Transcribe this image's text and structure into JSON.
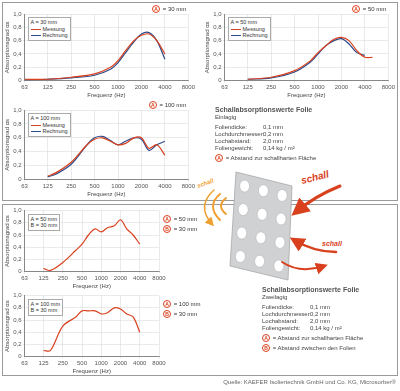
{
  "chart_data": [
    {
      "type": "line",
      "x_label": "Frequenz (Hz)",
      "y_label": "Absorptionsgrad αs",
      "log": "x",
      "grid": true,
      "legend": "upper left",
      "legend_title": [
        "A = 30 mm"
      ],
      "annotations": [
        {
          "letter": "A",
          "text": "= 30 mm"
        }
      ],
      "xlim": [
        63,
        8000
      ],
      "xticks": [
        63,
        125,
        250,
        500,
        1000,
        2000,
        4000,
        8000
      ],
      "ylim": [
        0,
        1
      ],
      "yticks": [
        0,
        {
          "value": 0.2,
          "label": "0,2"
        },
        {
          "value": 0.4,
          "label": "0,4"
        },
        {
          "value": 0.6,
          "label": "0,6"
        },
        {
          "value": 0.8,
          "label": "0,8"
        },
        {
          "value": 1,
          "label": "1,0"
        }
      ],
      "x": [
        63,
        125,
        250,
        500,
        800,
        1000,
        1250,
        1600,
        2000,
        2500,
        3150,
        4000
      ],
      "series": [
        {
          "name": "Messung",
          "color": "#d9411e",
          "values": [
            0.02,
            0.02,
            0.05,
            0.1,
            0.2,
            0.3,
            0.45,
            0.6,
            0.68,
            0.7,
            0.6,
            0.4
          ]
        },
        {
          "name": "Rechnung",
          "color": "#2d4a8a",
          "values": [
            0.01,
            0.02,
            0.04,
            0.08,
            0.17,
            0.27,
            0.42,
            0.58,
            0.7,
            0.72,
            0.6,
            0.32
          ]
        }
      ]
    },
    {
      "type": "line",
      "x_label": "Frequenz (Hz)",
      "y_label": "Absorptionsgrad αs",
      "log": "x",
      "grid": true,
      "legend": "upper left",
      "legend_title": [
        "A = 50 mm"
      ],
      "annotations": [
        {
          "letter": "A",
          "text": "= 50 mm"
        }
      ],
      "xlim": [
        63,
        8000
      ],
      "xticks": [
        63,
        125,
        250,
        500,
        1000,
        2000,
        4000,
        8000
      ],
      "ylim": [
        0,
        1
      ],
      "yticks": [
        0,
        {
          "value": 0.2,
          "label": "0,2"
        },
        {
          "value": 0.4,
          "label": "0,4"
        },
        {
          "value": 0.6,
          "label": "0,6"
        },
        {
          "value": 0.8,
          "label": "0,8"
        },
        {
          "value": 1,
          "label": "1,0"
        }
      ],
      "x": [
        125,
        250,
        500,
        800,
        1000,
        1250,
        1600,
        2000,
        2500,
        3150,
        4000,
        5000
      ],
      "series": [
        {
          "name": "Messung",
          "color": "#d9411e",
          "values": [
            0.02,
            0.05,
            0.15,
            0.3,
            0.42,
            0.52,
            0.62,
            0.65,
            0.6,
            0.45,
            0.35,
            0.35
          ]
        },
        {
          "name": "Rechnung",
          "color": "#2d4a8a",
          "values": [
            0.02,
            0.04,
            0.13,
            0.28,
            0.4,
            0.52,
            0.6,
            0.63,
            0.55,
            0.42,
            0.38,
            null
          ]
        }
      ]
    },
    {
      "type": "line",
      "x_label": "Frequenz (Hz)",
      "y_label": "Absorptionsgrad αs",
      "log": "x",
      "grid": true,
      "legend": "upper left",
      "legend_title": [
        "A = 100 mm"
      ],
      "annotations": [
        {
          "letter": "A",
          "text": "= 100 mm"
        }
      ],
      "xlim": [
        63,
        8000
      ],
      "xticks": [
        63,
        125,
        250,
        500,
        1000,
        2000,
        4000,
        8000
      ],
      "ylim": [
        0,
        1
      ],
      "yticks": [
        0,
        {
          "value": 0.2,
          "label": "0,2"
        },
        {
          "value": 0.4,
          "label": "0,4"
        },
        {
          "value": 0.6,
          "label": "0,6"
        },
        {
          "value": 0.8,
          "label": "0,8"
        },
        {
          "value": 1,
          "label": "1,0"
        }
      ],
      "x": [
        125,
        160,
        250,
        400,
        500,
        630,
        800,
        1000,
        1250,
        1600,
        2000,
        2500,
        3150,
        4000
      ],
      "series": [
        {
          "name": "Messung",
          "color": "#d9411e",
          "values": [
            0.05,
            0.1,
            0.25,
            0.5,
            0.58,
            0.6,
            0.55,
            0.5,
            0.52,
            0.6,
            0.6,
            0.45,
            0.5,
            0.35
          ]
        },
        {
          "name": "Rechnung",
          "color": "#2d4a8a",
          "values": [
            0.04,
            0.08,
            0.22,
            0.5,
            0.6,
            0.62,
            0.56,
            0.5,
            0.55,
            0.6,
            0.58,
            0.42,
            0.5,
            0.55
          ]
        }
      ]
    },
    {
      "type": "line",
      "x_label": "Frequenz (Hz)",
      "y_label": "Absorptionsgrad αs",
      "log": "x",
      "grid": true,
      "legend": "upper left",
      "legend_title": [
        "A = 50 mm",
        "B = 30 mm"
      ],
      "annotations": [
        {
          "letter": "A",
          "text": "= 50 mm"
        },
        {
          "letter": "B",
          "text": "= 30 mm"
        }
      ],
      "xlim": [
        63,
        8000
      ],
      "xticks": [
        63,
        125,
        250,
        500,
        1000,
        2000,
        4000,
        8000
      ],
      "ylim": [
        0,
        1
      ],
      "yticks": [
        0,
        {
          "value": 0.2,
          "label": "0,2"
        },
        {
          "value": 0.4,
          "label": "0,4"
        },
        {
          "value": 0.6,
          "label": "0,6"
        },
        {
          "value": 0.8,
          "label": "0,8"
        },
        {
          "value": 1,
          "label": "1,0"
        }
      ],
      "x": [
        125,
        160,
        250,
        400,
        500,
        630,
        800,
        1000,
        1250,
        1600,
        2000,
        2500,
        3150,
        4000
      ],
      "series": [
        {
          "color": "#d9411e",
          "values": [
            0.05,
            0.02,
            0.15,
            0.35,
            0.45,
            0.6,
            0.7,
            0.65,
            0.72,
            0.75,
            0.85,
            0.7,
            0.6,
            0.45
          ]
        }
      ]
    },
    {
      "type": "line",
      "x_label": "Frequenz (Hz)",
      "y_label": "Absorptionsgrad αs",
      "log": "x",
      "grid": true,
      "legend": "upper left",
      "legend_title": [
        "A = 100 mm",
        "B = 30 mm"
      ],
      "annotations": [
        {
          "letter": "A",
          "text": "= 100 mm"
        },
        {
          "letter": "B",
          "text": "= 30 mm"
        }
      ],
      "xlim": [
        63,
        8000
      ],
      "xticks": [
        63,
        125,
        250,
        500,
        1000,
        2000,
        4000,
        8000
      ],
      "ylim": [
        0,
        1
      ],
      "yticks": [
        0,
        {
          "value": 0.2,
          "label": "0,2"
        },
        {
          "value": 0.4,
          "label": "0,4"
        },
        {
          "value": 0.6,
          "label": "0,6"
        },
        {
          "value": 0.8,
          "label": "0,8"
        },
        {
          "value": 1,
          "label": "1,0"
        }
      ],
      "x": [
        125,
        160,
        250,
        400,
        500,
        630,
        800,
        1000,
        1250,
        1600,
        2000,
        2500,
        3150,
        4000
      ],
      "series": [
        {
          "color": "#d9411e",
          "values": [
            0.1,
            0.1,
            0.5,
            0.65,
            0.75,
            0.75,
            0.75,
            0.7,
            0.72,
            0.8,
            0.78,
            0.7,
            0.65,
            0.4
          ]
        }
      ]
    }
  ],
  "info": [
    {
      "title": "Schallabsorptionswerte Folie",
      "subtitle": "Einlagig",
      "properties": [
        [
          "Foliendicke:",
          "0,1 mm"
        ],
        [
          "Lochdurchmesser:",
          "0,2 mm"
        ],
        [
          "Lochabstand:",
          "2,0 mm"
        ],
        [
          "Foliengewicht:",
          "0,14 kg / m²"
        ]
      ],
      "keys": [
        {
          "letter": "A",
          "text": "= Abstand zur schallharten Fläche"
        }
      ]
    },
    {
      "title": "Schallabsorptionswerte Folie",
      "subtitle": "Zweilagig",
      "properties": [
        [
          "Foliendicke:",
          "0,1 mm"
        ],
        [
          "Lochdurchmesser:",
          "0,2 mm"
        ],
        [
          "Lochabstand:",
          "2,0 mm"
        ],
        [
          "Foliengewicht:",
          "0,14 kg / m²"
        ]
      ],
      "keys": [
        {
          "letter": "A",
          "text": "= Abstand zur schallharten Fläche"
        },
        {
          "letter": "B",
          "text": "= Abstand zwischen den Folien"
        }
      ]
    }
  ],
  "diagram": {
    "labels": [
      "schall",
      "schall",
      "schall"
    ]
  },
  "source": "Quelle: KAEFER Isoliertechnik GmbH und Co. KG, Microsorber®"
}
